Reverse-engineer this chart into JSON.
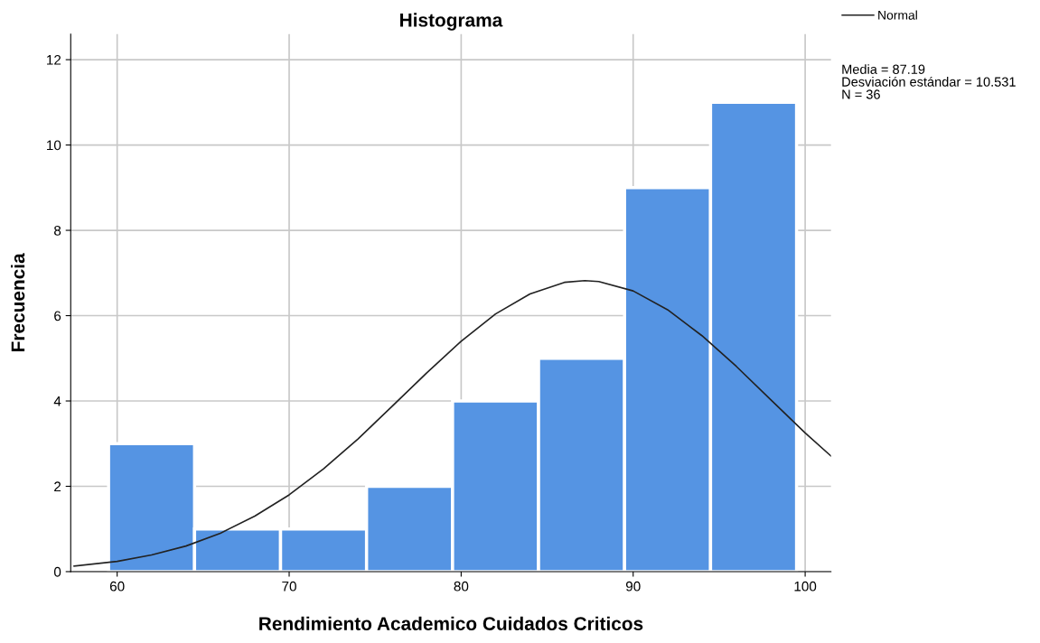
{
  "chart_data": {
    "type": "histogram",
    "title": "Histograma",
    "xlabel": "Rendimiento Academico Cuidados Criticos",
    "ylabel": "Frecuencia",
    "bins": [
      59.5,
      64.5,
      69.5,
      74.5,
      79.5,
      84.5,
      89.5,
      94.5,
      99.5
    ],
    "values": [
      3,
      1,
      1,
      2,
      4,
      5,
      9,
      11
    ],
    "color": "#5594e3",
    "series": [
      {
        "type": "line",
        "name": "Normal",
        "color": "#222222",
        "x": [
          57.5,
          60,
          62,
          64,
          66,
          68,
          70,
          72,
          74,
          76,
          78,
          80,
          82,
          84,
          86,
          87.19,
          88,
          90,
          92,
          94,
          96,
          98,
          100,
          101.5
        ],
        "values": [
          0.13,
          0.24,
          0.39,
          0.6,
          0.9,
          1.3,
          1.8,
          2.41,
          3.11,
          3.88,
          4.66,
          5.4,
          6.04,
          6.51,
          6.78,
          6.82,
          6.8,
          6.58,
          6.14,
          5.53,
          4.81,
          4.03,
          3.25,
          2.71
        ]
      }
    ],
    "annotations": [
      "Media = 87.19",
      "Desviación estándar = 10.531",
      "N = 36"
    ],
    "xlim": [
      57.3,
      101.5
    ],
    "xticks": [
      60,
      70,
      80,
      90,
      100
    ],
    "ylim": [
      0,
      12.6
    ],
    "yticks": [
      0,
      2,
      4,
      6,
      8,
      10,
      12
    ],
    "grid": true,
    "legend": "top right"
  }
}
